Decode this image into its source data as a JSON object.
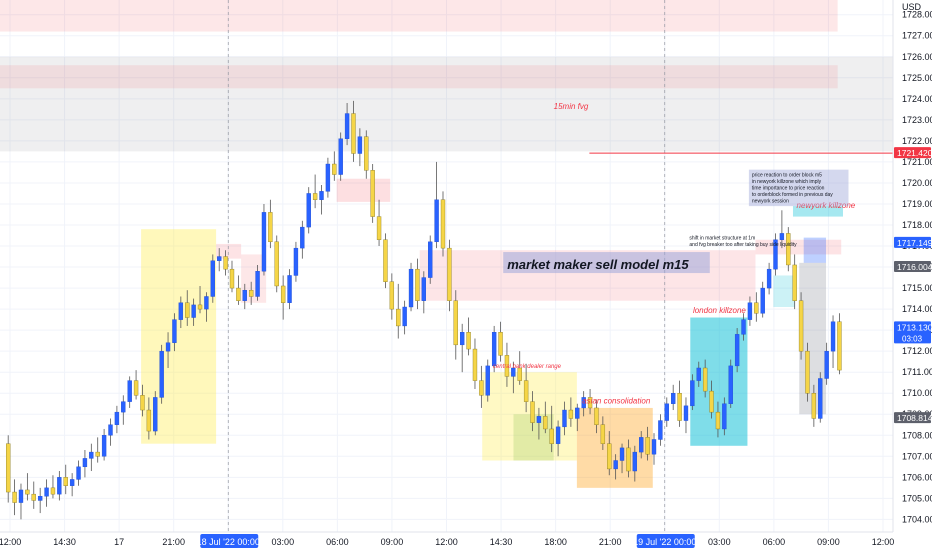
{
  "chart_data": {
    "type": "candlestick",
    "instrument": "",
    "currency_label": "USD",
    "y_axis": {
      "ticks": [
        "1704.00",
        "1705.00",
        "1706.00",
        "1707.00",
        "1708.00",
        "1709.00",
        "1710.00",
        "1711.00",
        "1712.00",
        "1713.00",
        "1714.00",
        "1715.00",
        "1716.00",
        "1717.00",
        "1718.00",
        "1719.00",
        "1720.00",
        "1721.00",
        "1722.00",
        "1723.00",
        "1724.00",
        "1725.00",
        "1726.00",
        "1727.00",
        "1728.00"
      ],
      "range": [
        1703.4,
        1728.7
      ]
    },
    "x_axis": {
      "labels": [
        "12:00",
        "14:30",
        "17",
        "21:00",
        "18 Jul '22  00:00",
        "03:00",
        "06:00",
        "09:00",
        "12:00",
        "14:30",
        "18:00",
        "21:00",
        "19 Jul '22  00:00",
        "03:00",
        "06:00",
        "09:00",
        "12:00"
      ],
      "highlighted": [
        "18 Jul '22  00:00",
        "19 Jul '22  00:00"
      ]
    },
    "price_tags": [
      {
        "value": 1721.42,
        "text": "1721.420",
        "color": "#f23645"
      },
      {
        "value": 1717.149,
        "text": "1717.149",
        "color": "#2962ff"
      },
      {
        "value": 1716.004,
        "text": "1716.004",
        "color": "#5d606b"
      },
      {
        "value": 1713.13,
        "text": "1713.130",
        "sub": "03:03",
        "color": "#2962ff"
      },
      {
        "value": 1708.814,
        "text": "1708.814",
        "color": "#5d606b"
      }
    ],
    "candles": [
      {
        "o": 1707.6,
        "h": 1708.0,
        "l": 1704.8,
        "c": 1705.3
      },
      {
        "o": 1705.3,
        "h": 1705.9,
        "l": 1704.2,
        "c": 1704.8
      },
      {
        "o": 1704.8,
        "h": 1705.7,
        "l": 1704.0,
        "c": 1705.4
      },
      {
        "o": 1705.4,
        "h": 1706.2,
        "l": 1704.9,
        "c": 1705.2
      },
      {
        "o": 1705.2,
        "h": 1705.8,
        "l": 1704.5,
        "c": 1704.9
      },
      {
        "o": 1704.9,
        "h": 1705.5,
        "l": 1704.3,
        "c": 1705.1
      },
      {
        "o": 1705.1,
        "h": 1705.9,
        "l": 1704.6,
        "c": 1705.5
      },
      {
        "o": 1705.5,
        "h": 1706.1,
        "l": 1705.0,
        "c": 1705.2
      },
      {
        "o": 1705.2,
        "h": 1706.3,
        "l": 1704.9,
        "c": 1706.0
      },
      {
        "o": 1706.0,
        "h": 1706.6,
        "l": 1705.2,
        "c": 1705.6
      },
      {
        "o": 1705.6,
        "h": 1706.2,
        "l": 1705.1,
        "c": 1705.9
      },
      {
        "o": 1705.9,
        "h": 1706.8,
        "l": 1705.6,
        "c": 1706.5
      },
      {
        "o": 1706.5,
        "h": 1707.3,
        "l": 1706.0,
        "c": 1706.9
      },
      {
        "o": 1706.9,
        "h": 1707.6,
        "l": 1706.3,
        "c": 1707.2
      },
      {
        "o": 1707.2,
        "h": 1707.9,
        "l": 1706.7,
        "c": 1707.0
      },
      {
        "o": 1707.0,
        "h": 1708.3,
        "l": 1706.8,
        "c": 1708.0
      },
      {
        "o": 1708.0,
        "h": 1708.8,
        "l": 1707.5,
        "c": 1708.5
      },
      {
        "o": 1708.5,
        "h": 1709.4,
        "l": 1708.1,
        "c": 1709.1
      },
      {
        "o": 1709.1,
        "h": 1709.9,
        "l": 1708.5,
        "c": 1709.6
      },
      {
        "o": 1709.6,
        "h": 1710.8,
        "l": 1709.3,
        "c": 1710.6
      },
      {
        "o": 1710.6,
        "h": 1711.1,
        "l": 1709.7,
        "c": 1709.9
      },
      {
        "o": 1709.9,
        "h": 1710.4,
        "l": 1708.9,
        "c": 1709.2
      },
      {
        "o": 1709.2,
        "h": 1709.8,
        "l": 1707.8,
        "c": 1708.2
      },
      {
        "o": 1708.2,
        "h": 1710.1,
        "l": 1708.0,
        "c": 1709.8
      },
      {
        "o": 1709.8,
        "h": 1712.3,
        "l": 1709.5,
        "c": 1712.0
      },
      {
        "o": 1712.0,
        "h": 1712.9,
        "l": 1711.2,
        "c": 1712.4
      },
      {
        "o": 1712.4,
        "h": 1713.8,
        "l": 1712.0,
        "c": 1713.5
      },
      {
        "o": 1713.5,
        "h": 1714.6,
        "l": 1713.1,
        "c": 1714.3
      },
      {
        "o": 1714.3,
        "h": 1714.9,
        "l": 1713.2,
        "c": 1713.6
      },
      {
        "o": 1713.6,
        "h": 1714.5,
        "l": 1713.2,
        "c": 1714.2
      },
      {
        "o": 1714.2,
        "h": 1715.1,
        "l": 1713.8,
        "c": 1714.0
      },
      {
        "o": 1714.0,
        "h": 1714.8,
        "l": 1713.4,
        "c": 1714.6
      },
      {
        "o": 1714.6,
        "h": 1716.6,
        "l": 1714.3,
        "c": 1716.3
      },
      {
        "o": 1716.3,
        "h": 1716.9,
        "l": 1715.8,
        "c": 1716.5
      },
      {
        "o": 1716.5,
        "h": 1716.8,
        "l": 1715.6,
        "c": 1715.9
      },
      {
        "o": 1715.9,
        "h": 1716.3,
        "l": 1714.8,
        "c": 1715.0
      },
      {
        "o": 1715.0,
        "h": 1715.6,
        "l": 1714.2,
        "c": 1714.4
      },
      {
        "o": 1714.4,
        "h": 1715.2,
        "l": 1714.0,
        "c": 1714.9
      },
      {
        "o": 1714.9,
        "h": 1715.3,
        "l": 1714.2,
        "c": 1714.6
      },
      {
        "o": 1714.6,
        "h": 1716.1,
        "l": 1714.4,
        "c": 1715.8
      },
      {
        "o": 1715.8,
        "h": 1719.0,
        "l": 1715.6,
        "c": 1718.6
      },
      {
        "o": 1718.6,
        "h": 1719.2,
        "l": 1716.9,
        "c": 1717.2
      },
      {
        "o": 1717.2,
        "h": 1717.5,
        "l": 1714.8,
        "c": 1715.1
      },
      {
        "o": 1715.1,
        "h": 1715.6,
        "l": 1713.5,
        "c": 1714.3
      },
      {
        "o": 1714.3,
        "h": 1715.9,
        "l": 1714.0,
        "c": 1715.6
      },
      {
        "o": 1715.6,
        "h": 1717.2,
        "l": 1715.3,
        "c": 1716.9
      },
      {
        "o": 1716.9,
        "h": 1718.2,
        "l": 1716.4,
        "c": 1717.9
      },
      {
        "o": 1717.9,
        "h": 1719.8,
        "l": 1717.6,
        "c": 1719.5
      },
      {
        "o": 1719.5,
        "h": 1720.4,
        "l": 1718.8,
        "c": 1719.2
      },
      {
        "o": 1719.2,
        "h": 1719.9,
        "l": 1718.5,
        "c": 1719.6
      },
      {
        "o": 1719.6,
        "h": 1721.2,
        "l": 1719.3,
        "c": 1720.9
      },
      {
        "o": 1720.9,
        "h": 1721.5,
        "l": 1720.1,
        "c": 1720.4
      },
      {
        "o": 1720.4,
        "h": 1722.4,
        "l": 1720.1,
        "c": 1722.1
      },
      {
        "o": 1722.1,
        "h": 1723.8,
        "l": 1721.8,
        "c": 1723.3
      },
      {
        "o": 1723.3,
        "h": 1723.9,
        "l": 1721.0,
        "c": 1721.4
      },
      {
        "o": 1721.4,
        "h": 1722.6,
        "l": 1720.8,
        "c": 1722.2
      },
      {
        "o": 1722.2,
        "h": 1722.5,
        "l": 1720.2,
        "c": 1720.6
      },
      {
        "o": 1720.6,
        "h": 1720.9,
        "l": 1718.1,
        "c": 1718.4
      },
      {
        "o": 1718.4,
        "h": 1719.2,
        "l": 1717.0,
        "c": 1717.3
      },
      {
        "o": 1717.3,
        "h": 1717.6,
        "l": 1715.0,
        "c": 1715.3
      },
      {
        "o": 1715.3,
        "h": 1715.7,
        "l": 1713.5,
        "c": 1714.0
      },
      {
        "o": 1714.0,
        "h": 1715.2,
        "l": 1712.6,
        "c": 1713.2
      },
      {
        "o": 1713.2,
        "h": 1714.4,
        "l": 1712.8,
        "c": 1714.1
      },
      {
        "o": 1714.1,
        "h": 1716.2,
        "l": 1713.9,
        "c": 1715.9
      },
      {
        "o": 1715.9,
        "h": 1716.4,
        "l": 1714.0,
        "c": 1714.4
      },
      {
        "o": 1714.4,
        "h": 1715.8,
        "l": 1713.8,
        "c": 1715.5
      },
      {
        "o": 1715.5,
        "h": 1717.5,
        "l": 1715.2,
        "c": 1717.2
      },
      {
        "o": 1717.2,
        "h": 1721.0,
        "l": 1716.9,
        "c": 1719.2
      },
      {
        "o": 1719.2,
        "h": 1719.6,
        "l": 1716.5,
        "c": 1716.9
      },
      {
        "o": 1716.9,
        "h": 1717.3,
        "l": 1713.9,
        "c": 1714.4
      },
      {
        "o": 1714.4,
        "h": 1714.9,
        "l": 1711.6,
        "c": 1712.3
      },
      {
        "o": 1712.3,
        "h": 1713.3,
        "l": 1711.0,
        "c": 1712.9
      },
      {
        "o": 1712.9,
        "h": 1713.6,
        "l": 1711.8,
        "c": 1712.1
      },
      {
        "o": 1712.1,
        "h": 1712.6,
        "l": 1710.2,
        "c": 1710.6
      },
      {
        "o": 1710.6,
        "h": 1711.3,
        "l": 1709.3,
        "c": 1709.9
      },
      {
        "o": 1709.9,
        "h": 1711.6,
        "l": 1709.6,
        "c": 1711.3
      },
      {
        "o": 1711.3,
        "h": 1713.2,
        "l": 1711.0,
        "c": 1712.9
      },
      {
        "o": 1712.9,
        "h": 1713.4,
        "l": 1711.5,
        "c": 1711.8
      },
      {
        "o": 1711.8,
        "h": 1712.4,
        "l": 1710.3,
        "c": 1710.8
      },
      {
        "o": 1710.8,
        "h": 1711.5,
        "l": 1710.0,
        "c": 1711.2
      },
      {
        "o": 1711.2,
        "h": 1712.0,
        "l": 1710.4,
        "c": 1710.6
      },
      {
        "o": 1710.6,
        "h": 1711.4,
        "l": 1709.1,
        "c": 1709.6
      },
      {
        "o": 1709.6,
        "h": 1710.1,
        "l": 1708.2,
        "c": 1708.6
      },
      {
        "o": 1708.6,
        "h": 1709.3,
        "l": 1707.8,
        "c": 1708.9
      },
      {
        "o": 1708.9,
        "h": 1709.6,
        "l": 1708.1,
        "c": 1708.3
      },
      {
        "o": 1708.3,
        "h": 1709.4,
        "l": 1707.2,
        "c": 1707.6
      },
      {
        "o": 1707.6,
        "h": 1708.7,
        "l": 1707.0,
        "c": 1708.4
      },
      {
        "o": 1708.4,
        "h": 1709.6,
        "l": 1708.0,
        "c": 1709.2
      },
      {
        "o": 1709.2,
        "h": 1709.8,
        "l": 1708.4,
        "c": 1708.8
      },
      {
        "o": 1708.8,
        "h": 1709.5,
        "l": 1708.2,
        "c": 1709.3
      },
      {
        "o": 1709.3,
        "h": 1710.1,
        "l": 1708.9,
        "c": 1709.8
      },
      {
        "o": 1709.8,
        "h": 1710.2,
        "l": 1709.0,
        "c": 1709.3
      },
      {
        "o": 1709.3,
        "h": 1709.7,
        "l": 1708.1,
        "c": 1708.5
      },
      {
        "o": 1708.5,
        "h": 1708.9,
        "l": 1707.3,
        "c": 1707.6
      },
      {
        "o": 1707.6,
        "h": 1708.2,
        "l": 1706.1,
        "c": 1706.4
      },
      {
        "o": 1706.4,
        "h": 1707.1,
        "l": 1705.9,
        "c": 1706.8
      },
      {
        "o": 1706.8,
        "h": 1707.6,
        "l": 1706.2,
        "c": 1707.4
      },
      {
        "o": 1707.4,
        "h": 1707.8,
        "l": 1706.0,
        "c": 1706.3
      },
      {
        "o": 1706.3,
        "h": 1707.5,
        "l": 1705.8,
        "c": 1707.2
      },
      {
        "o": 1707.2,
        "h": 1708.2,
        "l": 1706.9,
        "c": 1707.9
      },
      {
        "o": 1707.9,
        "h": 1708.4,
        "l": 1706.8,
        "c": 1707.1
      },
      {
        "o": 1707.1,
        "h": 1708.1,
        "l": 1706.6,
        "c": 1707.8
      },
      {
        "o": 1707.8,
        "h": 1709.0,
        "l": 1707.5,
        "c": 1708.7
      },
      {
        "o": 1708.7,
        "h": 1709.8,
        "l": 1708.4,
        "c": 1709.5
      },
      {
        "o": 1709.5,
        "h": 1710.4,
        "l": 1709.2,
        "c": 1710.0
      },
      {
        "o": 1710.0,
        "h": 1710.6,
        "l": 1708.4,
        "c": 1708.7
      },
      {
        "o": 1708.7,
        "h": 1709.8,
        "l": 1708.1,
        "c": 1709.4
      },
      {
        "o": 1709.4,
        "h": 1710.9,
        "l": 1709.2,
        "c": 1710.6
      },
      {
        "o": 1710.6,
        "h": 1711.5,
        "l": 1710.3,
        "c": 1711.2
      },
      {
        "o": 1711.2,
        "h": 1711.6,
        "l": 1709.8,
        "c": 1710.1
      },
      {
        "o": 1710.1,
        "h": 1710.6,
        "l": 1708.8,
        "c": 1709.1
      },
      {
        "o": 1709.1,
        "h": 1709.6,
        "l": 1707.9,
        "c": 1708.3
      },
      {
        "o": 1708.3,
        "h": 1709.8,
        "l": 1708.0,
        "c": 1709.5
      },
      {
        "o": 1709.5,
        "h": 1711.6,
        "l": 1709.3,
        "c": 1711.3
      },
      {
        "o": 1711.3,
        "h": 1713.1,
        "l": 1711.0,
        "c": 1712.8
      },
      {
        "o": 1712.8,
        "h": 1713.8,
        "l": 1712.5,
        "c": 1713.5
      },
      {
        "o": 1713.5,
        "h": 1714.6,
        "l": 1713.2,
        "c": 1714.3
      },
      {
        "o": 1714.3,
        "h": 1714.8,
        "l": 1713.4,
        "c": 1713.8
      },
      {
        "o": 1713.8,
        "h": 1715.3,
        "l": 1713.6,
        "c": 1715.0
      },
      {
        "o": 1715.0,
        "h": 1716.2,
        "l": 1714.7,
        "c": 1715.9
      },
      {
        "o": 1715.9,
        "h": 1717.6,
        "l": 1715.6,
        "c": 1717.3
      },
      {
        "o": 1717.3,
        "h": 1718.7,
        "l": 1716.9,
        "c": 1717.6
      },
      {
        "o": 1717.6,
        "h": 1717.9,
        "l": 1715.8,
        "c": 1716.1
      },
      {
        "o": 1716.1,
        "h": 1716.6,
        "l": 1714.0,
        "c": 1714.4
      },
      {
        "o": 1714.4,
        "h": 1714.8,
        "l": 1711.6,
        "c": 1712.0
      },
      {
        "o": 1712.0,
        "h": 1712.4,
        "l": 1709.6,
        "c": 1710.0
      },
      {
        "o": 1710.0,
        "h": 1710.4,
        "l": 1708.4,
        "c": 1708.8
      },
      {
        "o": 1708.8,
        "h": 1711.0,
        "l": 1708.6,
        "c": 1710.7
      },
      {
        "o": 1710.7,
        "h": 1712.4,
        "l": 1710.4,
        "c": 1712.0
      },
      {
        "o": 1712.0,
        "h": 1713.7,
        "l": 1711.2,
        "c": 1713.4
      },
      {
        "o": 1713.4,
        "h": 1713.8,
        "l": 1710.9,
        "c": 1711.1
      }
    ],
    "zones": [
      {
        "id": "top-red-zone",
        "y1": 1727.2,
        "y2": 1729.0,
        "x1": 0.0,
        "x2": 0.938,
        "fill": "rgba(242,54,69,0.12)"
      },
      {
        "id": "grey-fvg-zone",
        "y1": 1721.5,
        "y2": 1726.0,
        "x1": 0.0,
        "x2": 1.0,
        "fill": "rgba(120,123,134,0.12)"
      },
      {
        "id": "upper-red-band",
        "y1": 1724.5,
        "y2": 1725.6,
        "x1": 0.0,
        "x2": 0.938,
        "fill": "rgba(242,54,69,0.10)"
      },
      {
        "id": "asia-red-zone-1",
        "y1": 1716.4,
        "y2": 1717.1,
        "x1": 0.242,
        "x2": 0.27,
        "fill": "rgba(242,54,69,0.14)"
      },
      {
        "id": "asia-red-zone-2",
        "y1": 1714.3,
        "y2": 1716.6,
        "x1": 0.27,
        "x2": 0.298,
        "fill": "rgba(242,54,69,0.12)"
      },
      {
        "id": "mid-red-zone",
        "y1": 1719.1,
        "y2": 1720.2,
        "x1": 0.377,
        "x2": 0.437,
        "fill": "rgba(242,54,69,0.16)"
      },
      {
        "id": "mm-red-zone",
        "y1": 1714.4,
        "y2": 1716.8,
        "x1": 0.47,
        "x2": 0.846,
        "fill": "rgba(242,54,69,0.13)"
      },
      {
        "id": "ny-red-zone",
        "y1": 1716.6,
        "y2": 1717.3,
        "x1": 0.846,
        "x2": 0.942,
        "fill": "rgba(242,54,69,0.14)"
      },
      {
        "id": "yellow-session-1",
        "y1": 1707.6,
        "y2": 1717.8,
        "x1": 0.158,
        "x2": 0.242,
        "fill": "rgba(255,235,59,0.35)"
      },
      {
        "id": "yellow-dealer-range",
        "y1": 1706.8,
        "y2": 1711.0,
        "x1": 0.54,
        "x2": 0.646,
        "fill": "rgba(255,235,59,0.30)"
      },
      {
        "id": "green-overlap",
        "y1": 1706.8,
        "y2": 1709.0,
        "x1": 0.575,
        "x2": 0.62,
        "fill": "rgba(139,195,74,0.25)"
      },
      {
        "id": "orange-asian-consolidation",
        "y1": 1705.5,
        "y2": 1709.3,
        "x1": 0.646,
        "x2": 0.731,
        "fill": "rgba(255,152,0,0.35)"
      },
      {
        "id": "cyan-london-killzone",
        "y1": 1707.5,
        "y2": 1713.6,
        "x1": 0.773,
        "x2": 0.837,
        "fill": "rgba(0,188,212,0.50)"
      },
      {
        "id": "teal-ny-small",
        "y1": 1714.1,
        "y2": 1715.6,
        "x1": 0.866,
        "x2": 0.89,
        "fill": "rgba(0,188,212,0.20)"
      },
      {
        "id": "blue-ny-box",
        "y1": 1716.2,
        "y2": 1717.4,
        "x1": 0.9,
        "x2": 0.925,
        "fill": "rgba(41,98,255,0.30)"
      },
      {
        "id": "grey-ny-box",
        "y1": 1709.0,
        "y2": 1716.2,
        "x1": 0.895,
        "x2": 0.925,
        "fill": "rgba(120,123,134,0.25)"
      },
      {
        "id": "ny-killzone-strip",
        "y1": 1718.4,
        "y2": 1718.9,
        "x1": 0.888,
        "x2": 0.944,
        "fill": "rgba(0,188,212,0.35)"
      }
    ],
    "annotations": [
      {
        "id": "fvg-15min",
        "text": "15min fvg",
        "x": 0.62,
        "y": 1723.6,
        "color": "#f23645",
        "size": 8,
        "italic": true
      },
      {
        "id": "mm-sell-model",
        "text": "market maker sell model m15",
        "x": 0.568,
        "y": 1716.0,
        "color": "#131722",
        "size": 13,
        "italic": true,
        "box": "rgba(159,168,218,0.55)"
      },
      {
        "id": "london-killzone",
        "text": "london killzone",
        "x": 0.776,
        "y": 1713.9,
        "color": "#f23645",
        "size": 8,
        "italic": true
      },
      {
        "id": "central-bank-range",
        "text": "central bank dealer range",
        "x": 0.552,
        "y": 1711.3,
        "color": "#f23645",
        "size": 6,
        "italic": true
      },
      {
        "id": "asian-consolidation",
        "text": "asian consolidation",
        "x": 0.652,
        "y": 1709.6,
        "color": "#f23645",
        "size": 8,
        "italic": true
      },
      {
        "id": "newyork-killzone",
        "text": "newyork killzone",
        "x": 0.892,
        "y": 1718.9,
        "color": "#f23645",
        "size": 8,
        "italic": true
      },
      {
        "id": "ny-note",
        "lines": [
          "price reaction to order block m5",
          "in newyork killzone which imply",
          "time importance to price reaction",
          "to orderblock formed in previous day",
          "newyork session"
        ],
        "x": 0.842,
        "y": 1720.3,
        "color": "#131722",
        "size": 5,
        "box": "rgba(159,168,218,0.45)"
      },
      {
        "id": "ms-shift-note",
        "lines": [
          "shift in market structure at 1m",
          "and fvg breaker too after taking buy side liquidity"
        ],
        "x": 0.772,
        "y": 1717.3,
        "color": "#131722",
        "size": 5,
        "box": "rgba(159,168,218,0.0)"
      }
    ],
    "red_line": {
      "value": 1721.42,
      "x_start": 0.66
    }
  }
}
